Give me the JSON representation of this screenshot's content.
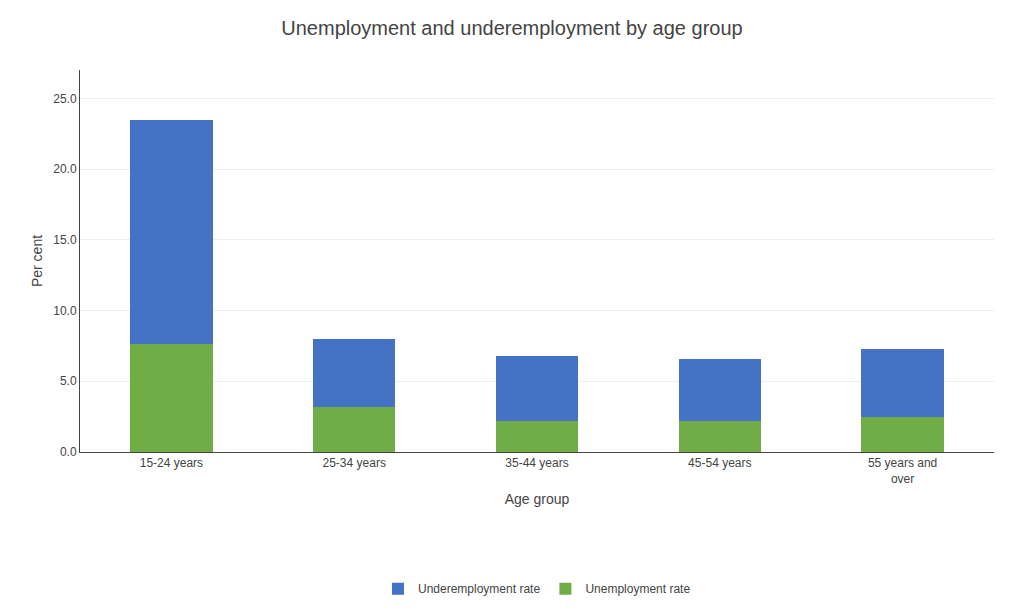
{
  "chart_data": {
    "type": "bar",
    "title": "Unemployment and underemployment by age group",
    "categories": [
      "15-24 years",
      "25-34 years",
      "35-44 years",
      "45-54 years",
      "55 years and\nover"
    ],
    "series": [
      {
        "name": "Unemployment rate",
        "color": "#70ad47",
        "values": [
          7.6,
          3.2,
          2.2,
          2.2,
          2.5
        ]
      },
      {
        "name": "Underemployment rate",
        "color": "#4472c4",
        "values": [
          15.9,
          4.8,
          4.6,
          4.4,
          4.8
        ]
      }
    ],
    "stacked": true,
    "xlabel": "Age group",
    "ylabel": "Per cent",
    "ylim": [
      0,
      27
    ],
    "yticks": [
      {
        "value": 0,
        "label": "0.0"
      },
      {
        "value": 5,
        "label": "5.0"
      },
      {
        "value": 10,
        "label": "10.0"
      },
      {
        "value": 15,
        "label": "15.0"
      },
      {
        "value": 20,
        "label": "20.0"
      },
      {
        "value": 25,
        "label": "25.0"
      }
    ],
    "grid": true,
    "legend": "bottom"
  }
}
